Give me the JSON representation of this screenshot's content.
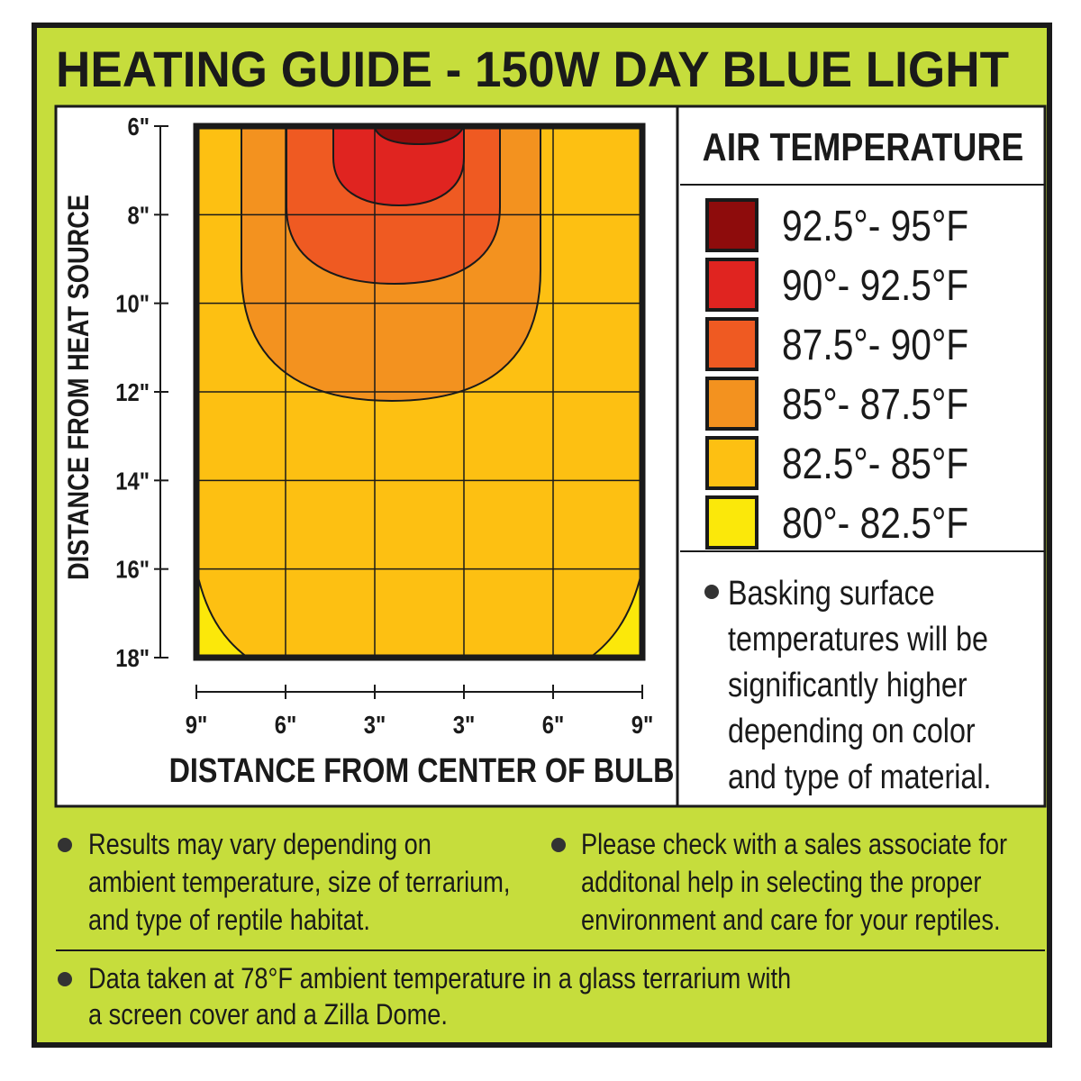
{
  "header": {
    "title": "HEATING GUIDE - 150W DAY BLUE LIGHT"
  },
  "chart": {
    "y_axis_label": "DISTANCE FROM HEAT SOURCE",
    "y_ticks": [
      "6\"",
      "8\"",
      "10\"",
      "12\"",
      "14\"",
      "16\"",
      "18\""
    ],
    "x_ticks": [
      "9\"",
      "6\"",
      "3\"",
      "3\"",
      "6\"",
      "9\""
    ],
    "x_axis_label": "DISTANCE FROM CENTER OF BULB"
  },
  "legend": {
    "title": "AIR TEMPERATURE",
    "items": [
      {
        "label": "92.5°- 95°F",
        "color": "#8e0c0c"
      },
      {
        "label": "90°- 92.5°F",
        "color": "#e02420"
      },
      {
        "label": "87.5°- 90°F",
        "color": "#ef5a22"
      },
      {
        "label": "85°- 87.5°F",
        "color": "#f3921f"
      },
      {
        "label": "82.5°- 85°F",
        "color": "#fdc012"
      },
      {
        "label": "80°- 82.5°F",
        "color": "#fbe80a"
      }
    ]
  },
  "side_note": {
    "lines": [
      "Basking surface",
      "temperatures will be",
      "significantly higher",
      "depending on color",
      "and type of material."
    ]
  },
  "notes": [
    {
      "lines": [
        "Results may vary depending on",
        "ambient temperature, size of terrarium,",
        "and type of reptile habitat."
      ]
    },
    {
      "lines": [
        "Please check with a sales associate for",
        "additonal help in selecting the proper",
        "environment and care for your reptiles."
      ]
    },
    {
      "lines": [
        "Data taken at 78°F ambient temperature in a glass terrarium with",
        "a screen cover and a Zilla Dome."
      ]
    }
  ]
}
